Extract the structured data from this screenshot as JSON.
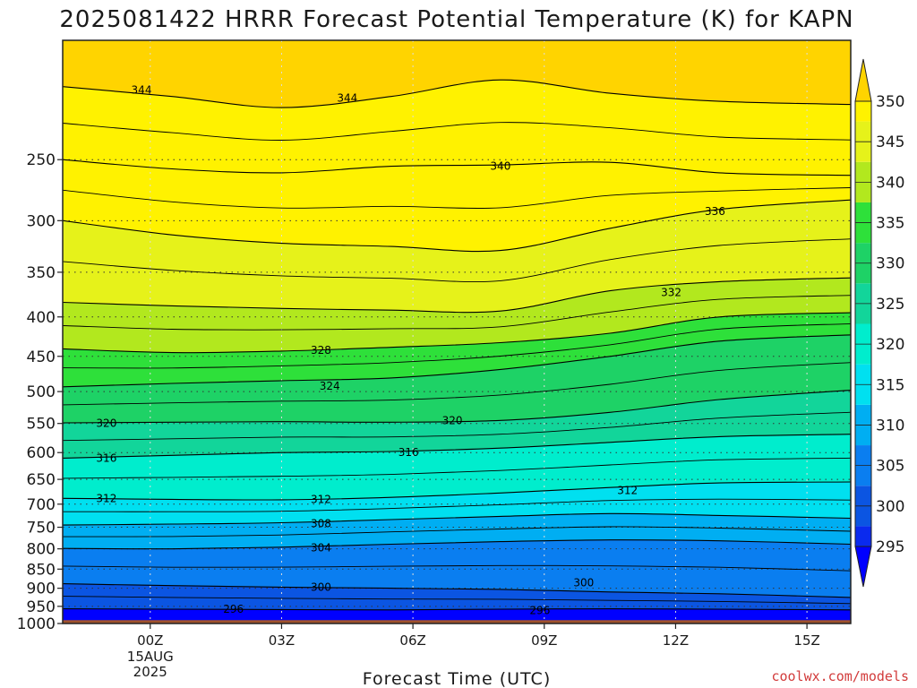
{
  "chart_data": {
    "type": "heatmap",
    "title": "2025081422 HRRR Forecast Potential Temperature (K) for KAPN",
    "xlabel": "Forecast Time (UTC)",
    "ylabel": "",
    "x_ticks": [
      {
        "label": "00Z",
        "sub": [
          "15AUG",
          "2025"
        ],
        "hour": 0
      },
      {
        "label": "03Z",
        "hour": 3
      },
      {
        "label": "06Z",
        "hour": 6
      },
      {
        "label": "09Z",
        "hour": 9
      },
      {
        "label": "12Z",
        "hour": 12
      },
      {
        "label": "15Z",
        "hour": 15
      }
    ],
    "xlim": [
      -2,
      16
    ],
    "y_ticks": [
      250,
      300,
      350,
      400,
      450,
      500,
      550,
      600,
      650,
      700,
      750,
      800,
      850,
      900,
      950,
      1000
    ],
    "ylim_hpa": [
      175,
      1000
    ],
    "y_scale": "log-pressure",
    "grid": true,
    "colorbar": {
      "levels": [
        295,
        300,
        305,
        310,
        315,
        320,
        325,
        330,
        335,
        340,
        345,
        350
      ],
      "colors": [
        "#0000ff",
        "#0a2aee",
        "#0b55e2",
        "#0a7ef0",
        "#00aef2",
        "#00e0f0",
        "#00edcd",
        "#12d59a",
        "#1ed266",
        "#2ee03a",
        "#b2e81e",
        "#e6f21a",
        "#fff200",
        "#ffd400"
      ]
    },
    "isentropes": [
      {
        "theta": 296,
        "p": [
          957,
          958,
          959,
          960,
          958,
          957,
          958,
          960
        ]
      },
      {
        "theta": 300,
        "p": [
          888,
          893,
          897,
          900,
          903,
          910,
          915,
          925
        ]
      },
      {
        "theta": 304,
        "p": [
          799,
          800,
          796,
          789,
          783,
          779,
          781,
          789
        ]
      },
      {
        "theta": 308,
        "p": [
          745,
          743,
          740,
          733,
          726,
          720,
          724,
          730
        ]
      },
      {
        "theta": 312,
        "p": [
          688,
          690,
          691,
          686,
          677,
          666,
          657,
          655
        ]
      },
      {
        "theta": 316,
        "p": [
          610,
          605,
          600,
          598,
          592,
          582,
          572,
          568
        ]
      },
      {
        "theta": 320,
        "p": [
          549,
          548,
          547,
          548,
          545,
          532,
          512,
          498
        ]
      },
      {
        "theta": 324,
        "p": [
          493,
          488,
          484,
          480,
          468,
          450,
          430,
          422
        ]
      },
      {
        "theta": 328,
        "p": [
          440,
          445,
          443,
          438,
          432,
          420,
          400,
          395
        ]
      },
      {
        "theta": 332,
        "p": [
          383,
          387,
          390,
          392,
          393,
          370,
          360,
          356
        ]
      },
      {
        "theta": 336,
        "p": [
          300,
          313,
          321,
          324,
          328,
          307,
          290,
          282
        ]
      },
      {
        "theta": 340,
        "p": [
          250,
          257,
          260,
          255,
          254,
          252,
          260,
          262
        ]
      },
      {
        "theta": 344,
        "p": [
          201,
          207,
          214,
          207,
          197,
          205,
          210,
          212
        ]
      }
    ],
    "isentrope_hours": [
      -2,
      0.5,
      3,
      5.5,
      8,
      10.5,
      13,
      16
    ],
    "contour_labels": [
      {
        "text": "344",
        "hour": -0.2,
        "p": 203
      },
      {
        "text": "344",
        "hour": 4.5,
        "p": 208
      },
      {
        "text": "340",
        "hour": 8.0,
        "p": 255
      },
      {
        "text": "336",
        "hour": 12.9,
        "p": 292
      },
      {
        "text": "332",
        "hour": 11.9,
        "p": 372
      },
      {
        "text": "328",
        "hour": 3.9,
        "p": 442
      },
      {
        "text": "324",
        "hour": 4.1,
        "p": 492
      },
      {
        "text": "320",
        "hour": -1.0,
        "p": 550
      },
      {
        "text": "320",
        "hour": 6.9,
        "p": 545
      },
      {
        "text": "316",
        "hour": -1.0,
        "p": 610
      },
      {
        "text": "316",
        "hour": 5.9,
        "p": 600
      },
      {
        "text": "312",
        "hour": -1.0,
        "p": 688
      },
      {
        "text": "312",
        "hour": 3.9,
        "p": 690
      },
      {
        "text": "312",
        "hour": 10.9,
        "p": 672
      },
      {
        "text": "308",
        "hour": 3.9,
        "p": 742
      },
      {
        "text": "304",
        "hour": 3.9,
        "p": 797
      },
      {
        "text": "300",
        "hour": 3.9,
        "p": 897
      },
      {
        "text": "300",
        "hour": 9.9,
        "p": 885
      },
      {
        "text": "296",
        "hour": 1.9,
        "p": 958
      },
      {
        "text": "296",
        "hour": 8.9,
        "p": 962
      }
    ],
    "ground_color": "#a0522d"
  },
  "credit": "coolwx.com/models"
}
